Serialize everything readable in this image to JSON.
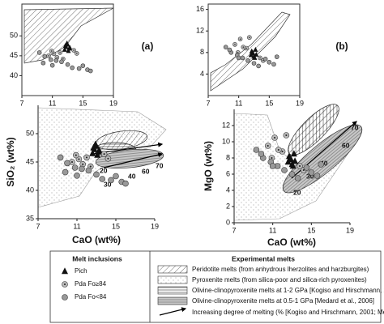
{
  "chart_data": [
    {
      "type": "scatter",
      "panel_label": "(a)",
      "xlabel": "CaO (wt%)",
      "ylabel": "SiO₂ (wt%)",
      "xlim": [
        7,
        19
      ],
      "xticks": [
        7,
        11,
        15,
        19
      ],
      "ylim": [
        35,
        55
      ],
      "yticks": [
        35,
        40,
        45,
        50
      ],
      "series": [
        {
          "name": "Pich",
          "marker": "triangle",
          "color": "#111111",
          "x": [
            12.6,
            12.8,
            13.0,
            13.2,
            12.9,
            13.1,
            12.7,
            13.3
          ],
          "y": [
            46.5,
            47.2,
            47.8,
            46.8,
            48.1,
            46.2,
            47.5,
            47.0
          ]
        },
        {
          "name": "Pda Fo≥84",
          "marker": "dotted-circle",
          "color": "#bbbbbb",
          "x": [
            10.5,
            11.2,
            12.0,
            11.6,
            13.8,
            14.2,
            12.4,
            10.9
          ],
          "y": [
            45.0,
            45.5,
            45.8,
            44.6,
            46.4,
            45.6,
            44.2,
            46.2
          ]
        },
        {
          "name": "Pda Fo<84",
          "marker": "circle",
          "color": "#999999",
          "x": [
            9.3,
            10.0,
            10.8,
            11.5,
            12.2,
            13.0,
            13.6,
            14.5,
            15.0,
            15.6,
            16.0,
            9.8,
            11.0
          ],
          "y": [
            45.8,
            44.8,
            44.0,
            43.8,
            43.5,
            42.8,
            42.0,
            41.8,
            42.5,
            41.5,
            41.2,
            43.2,
            42.6
          ]
        }
      ],
      "annotations": [
        "20",
        "30",
        "40",
        "60",
        "70"
      ],
      "inset": {
        "xlim": [
          7,
          19
        ],
        "xticks": [
          7,
          11,
          15,
          19
        ],
        "ylim": [
          35,
          58
        ],
        "yticks": [
          40,
          45,
          50
        ]
      }
    },
    {
      "type": "scatter",
      "panel_label": "(b)",
      "xlabel": "CaO (wt%)",
      "ylabel": "MgO (wt%)",
      "xlim": [
        7,
        19
      ],
      "xticks": [
        7,
        11,
        15,
        19
      ],
      "ylim": [
        0,
        14
      ],
      "yticks": [
        0,
        2,
        4,
        6,
        8,
        10,
        12
      ],
      "series": [
        {
          "name": "Pich",
          "marker": "triangle",
          "color": "#111111",
          "x": [
            12.6,
            12.8,
            13.0,
            13.2,
            12.9,
            13.1,
            12.7,
            13.3
          ],
          "y": [
            7.5,
            8.0,
            7.2,
            8.5,
            7.8,
            7.0,
            8.2,
            7.6
          ]
        },
        {
          "name": "Pda Fo≥84",
          "marker": "dotted-circle",
          "color": "#bbbbbb",
          "x": [
            10.5,
            11.2,
            12.0,
            11.6,
            13.8,
            14.2,
            12.4,
            10.9
          ],
          "y": [
            9.5,
            10.5,
            8.8,
            9.0,
            7.0,
            6.5,
            10.8,
            8.0
          ]
        },
        {
          "name": "Pda Fo<84",
          "marker": "circle",
          "color": "#999999",
          "x": [
            9.3,
            10.0,
            10.8,
            11.5,
            12.2,
            13.0,
            13.6,
            14.5,
            15.0,
            15.6,
            16.0,
            9.8,
            11.0
          ],
          "y": [
            9.0,
            8.0,
            7.5,
            7.0,
            6.5,
            6.0,
            5.5,
            6.8,
            6.2,
            5.8,
            7.2,
            8.5,
            7.0
          ]
        }
      ],
      "annotations": [
        "20",
        "30",
        "40",
        "60",
        "70"
      ],
      "inset": {
        "xlim": [
          7,
          19
        ],
        "xticks": [
          7,
          11,
          15,
          19
        ],
        "ylim": [
          0,
          17
        ],
        "yticks": [
          4,
          8,
          12,
          16
        ]
      }
    }
  ],
  "legend": {
    "melt_title": "Melt inclusions",
    "experimental_title": "Experimental melts",
    "experimental_items": [
      "Peridotite melts (from anhydrous lherzolites and harzburgites)",
      "Pyroxenite melts (from silica-poor and silica-rich pyroxenites)",
      "Olivine-clinopyroxenite melts at 1-2 GPa [Kogiso and Hirschmann, 2001]",
      "Olivine-clinopyroxenite melts at 0.5-1 GPa [Medard et al., 2006]",
      "Increasing degree of melting (% [Kogiso and Hirschmann, 2001; Medard et al., 2006])"
    ]
  }
}
